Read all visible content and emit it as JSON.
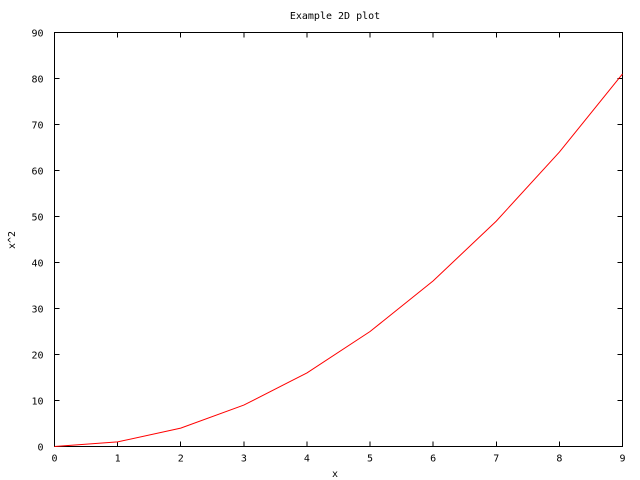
{
  "chart_data": {
    "type": "line",
    "title": "Example 2D plot",
    "xlabel": "x",
    "ylabel": "x^2",
    "xlim": [
      0,
      9
    ],
    "ylim": [
      0,
      90
    ],
    "x_ticks": [
      "0",
      "1",
      "2",
      "3",
      "4",
      "5",
      "6",
      "7",
      "8",
      "9"
    ],
    "y_ticks": [
      "0",
      "10",
      "20",
      "30",
      "40",
      "50",
      "60",
      "70",
      "80",
      "90"
    ],
    "grid": false,
    "series": [
      {
        "color": "#ff0000",
        "x": [
          0,
          1,
          2,
          3,
          4,
          5,
          6,
          7,
          8,
          9
        ],
        "y": [
          0,
          1,
          4,
          9,
          16,
          25,
          36,
          49,
          64,
          81
        ]
      }
    ]
  }
}
